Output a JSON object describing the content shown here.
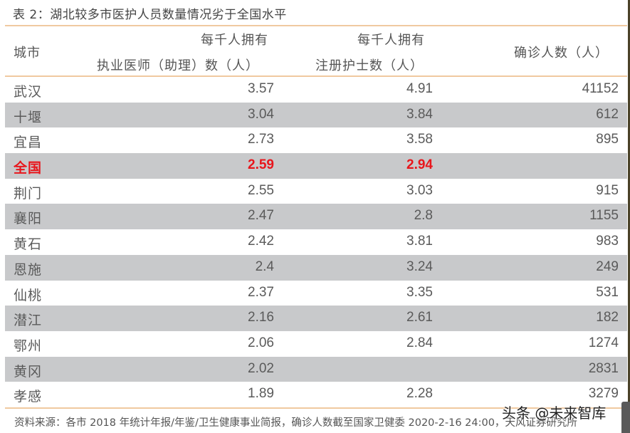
{
  "title": "表 2：湖北较多市医护人员数量情况劣于全国水平",
  "table": {
    "headers": {
      "city": "城市",
      "doctors_line1": "每千人拥有",
      "doctors_line2": "执业医师（助理）数（人）",
      "nurses_line1": "每千人拥有",
      "nurses_line2": "注册护士数（人）",
      "confirmed": "确诊人数（人）"
    },
    "rows": [
      {
        "city": "武汉",
        "doctors": "3.57",
        "nurses": "4.91",
        "confirmed": "41152"
      },
      {
        "city": "十堰",
        "doctors": "3.04",
        "nurses": "3.84",
        "confirmed": "612"
      },
      {
        "city": "宜昌",
        "doctors": "2.73",
        "nurses": "3.58",
        "confirmed": "895"
      },
      {
        "city": "全国",
        "doctors": "2.59",
        "nurses": "2.94",
        "confirmed": "",
        "highlight": true
      },
      {
        "city": "荆门",
        "doctors": "2.55",
        "nurses": "3.03",
        "confirmed": "915"
      },
      {
        "city": "襄阳",
        "doctors": "2.47",
        "nurses": "2.8",
        "confirmed": "1155"
      },
      {
        "city": "黄石",
        "doctors": "2.42",
        "nurses": "3.81",
        "confirmed": "983"
      },
      {
        "city": "恩施",
        "doctors": "2.4",
        "nurses": "3.24",
        "confirmed": "249"
      },
      {
        "city": "仙桃",
        "doctors": "2.37",
        "nurses": "3.35",
        "confirmed": "531"
      },
      {
        "city": "潜江",
        "doctors": "2.16",
        "nurses": "2.61",
        "confirmed": "182"
      },
      {
        "city": "鄂州",
        "doctors": "2.06",
        "nurses": "2.84",
        "confirmed": "1274"
      },
      {
        "city": "黄冈",
        "doctors": "2.02",
        "nurses": "",
        "confirmed": "2831"
      },
      {
        "city": "孝感",
        "doctors": "1.89",
        "nurses": "2.28",
        "confirmed": "3279"
      }
    ]
  },
  "footer": "资料来源：各市 2018 年统计年报/年鉴/卫生健康事业简报，确诊人数截至国家卫健委 2020-2-16 24:00，天风证券研究所",
  "watermark": "头条 @未来智库",
  "colors": {
    "rule": "#f0c9a0",
    "shade": "#c8c9cb",
    "highlight": "#e8161c",
    "text": "#555555"
  }
}
